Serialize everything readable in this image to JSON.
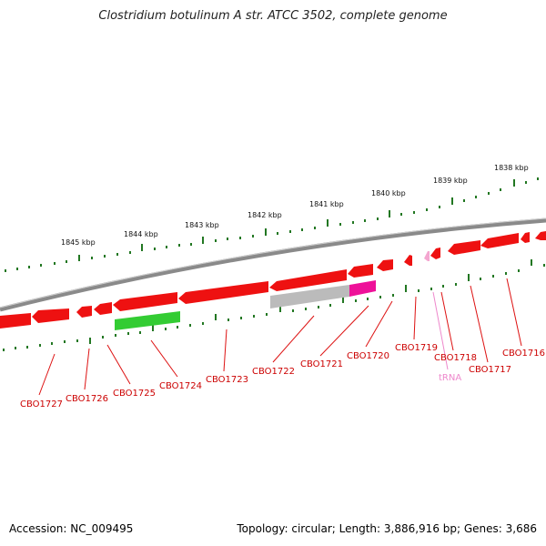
{
  "title": "Clostridium botulinum A str. ATCC 3502, complete genome",
  "accession": "Accession: NC_009495",
  "stats": "Topology: circular; Length: 3,886,916 bp; Genes: 3,686",
  "colors": {
    "backbone": "#888888",
    "cds": "#ee1111",
    "cds_highlight": "#33cc33",
    "pseudo": "#bbbbbb",
    "rna_magenta": "#ee1199",
    "trna": "#f4a6d0",
    "tick": "#227722",
    "label": "#cc0000"
  },
  "kbp_labels": [
    "1845 kbp",
    "1844 kbp",
    "1843 kbp",
    "1842 kbp",
    "1841 kbp",
    "1840 kbp",
    "1839 kbp",
    "1838 kbp"
  ],
  "gene_labels": [
    {
      "text": "CBO1727",
      "type": "cds"
    },
    {
      "text": "CBO1726",
      "type": "cds"
    },
    {
      "text": "CBO1725",
      "type": "cds"
    },
    {
      "text": "CBO1724",
      "type": "cds"
    },
    {
      "text": "CBO1723",
      "type": "cds"
    },
    {
      "text": "CBO1722",
      "type": "cds"
    },
    {
      "text": "CBO1721",
      "type": "cds"
    },
    {
      "text": "CBO1720",
      "type": "cds"
    },
    {
      "text": "CBO1719",
      "type": "cds"
    },
    {
      "text": "CBO1718",
      "type": "cds"
    },
    {
      "text": "tRNA",
      "type": "trna"
    },
    {
      "text": "CBO1717",
      "type": "cds"
    },
    {
      "text": "CBO1716",
      "type": "cds"
    }
  ]
}
